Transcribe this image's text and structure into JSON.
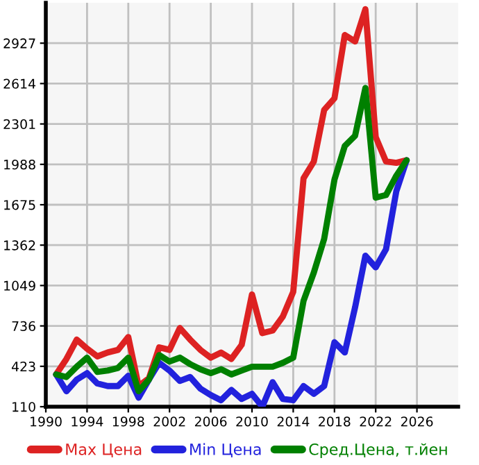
{
  "chart_data": {
    "type": "line",
    "x": [
      1991,
      1992,
      1993,
      1994,
      1995,
      1996,
      1997,
      1998,
      1999,
      2000,
      2001,
      2002,
      2003,
      2004,
      2005,
      2006,
      2007,
      2008,
      2009,
      2010,
      2011,
      2012,
      2013,
      2014,
      2015,
      2016,
      2017,
      2018,
      2019,
      2020,
      2021,
      2022,
      2023,
      2024,
      2025
    ],
    "series": [
      {
        "name": "Max Цена",
        "color": "#dd2222",
        "values": [
          360,
          480,
          630,
          560,
          500,
          530,
          550,
          650,
          270,
          330,
          570,
          550,
          720,
          630,
          550,
          490,
          530,
          480,
          590,
          980,
          680,
          700,
          810,
          1000,
          1880,
          2010,
          2410,
          2500,
          2990,
          2940,
          3190,
          2200,
          2010,
          2000,
          2020
        ]
      },
      {
        "name": "Min Цена",
        "color": "#2222dd",
        "values": [
          360,
          230,
          320,
          370,
          290,
          270,
          270,
          350,
          180,
          320,
          450,
          390,
          310,
          340,
          250,
          200,
          160,
          240,
          170,
          210,
          110,
          300,
          170,
          160,
          270,
          210,
          270,
          610,
          530,
          880,
          1280,
          1190,
          1330,
          1780,
          2020
        ]
      },
      {
        "name": "Сред.Цена, т.йен",
        "color": "#008000",
        "values": [
          360,
          340,
          420,
          490,
          380,
          390,
          410,
          490,
          230,
          320,
          510,
          460,
          490,
          440,
          400,
          370,
          400,
          360,
          390,
          420,
          420,
          420,
          450,
          490,
          930,
          1150,
          1410,
          1870,
          2130,
          2210,
          2580,
          1730,
          1750,
          1900,
          2020
        ]
      }
    ],
    "xlim": [
      1990,
      2030
    ],
    "xticks": [
      1990,
      1994,
      1998,
      2002,
      2006,
      2010,
      2014,
      2018,
      2022,
      2026
    ],
    "ylim": [
      110,
      3240
    ],
    "yticks": [
      110,
      423,
      736,
      1049,
      1362,
      1675,
      1988,
      2301,
      2614,
      2927
    ],
    "grid": true,
    "legend": "bottom",
    "marker": "none",
    "line_style": "solid"
  }
}
